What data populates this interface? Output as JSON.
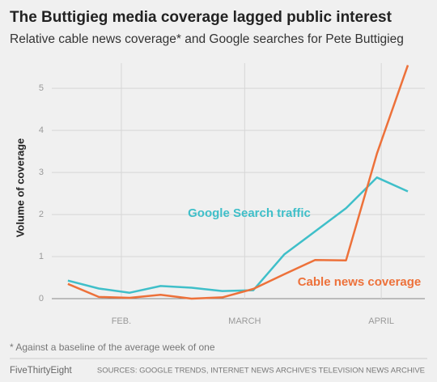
{
  "chart_data": {
    "type": "line",
    "title": "The Buttigieg media coverage lagged public interest",
    "subtitle": "Relative cable news coverage* and Google searches for Pete Buttigieg",
    "y_label": "Volume of coverage",
    "x": [
      0,
      1,
      2,
      3,
      4,
      5,
      6,
      7,
      8,
      9,
      10,
      11
    ],
    "xlim": [
      -0.52,
      11.55
    ],
    "xticks": [
      {
        "value": 1.73,
        "label": "FEB."
      },
      {
        "value": 5.72,
        "label": "MARCH"
      },
      {
        "value": 10.14,
        "label": "APRIL"
      }
    ],
    "ylim": [
      0,
      5.6
    ],
    "yticks": [
      0,
      1,
      2,
      3,
      4,
      5
    ],
    "grid": true,
    "series": [
      {
        "name": "Google Search traffic",
        "color": "#3fbfc9",
        "values": [
          0.43,
          0.24,
          0.14,
          0.3,
          0.26,
          0.18,
          0.2,
          1.05,
          1.6,
          2.15,
          2.88,
          2.55
        ]
      },
      {
        "name": "Cable news coverage",
        "color": "#ed713a",
        "values": [
          0.35,
          0.04,
          0.02,
          0.09,
          0.0,
          0.03,
          0.23,
          0.58,
          0.92,
          0.91,
          3.45,
          5.55
        ]
      }
    ],
    "footnote": "* Against a baseline of the average week of one",
    "credit": "FiveThirtyEight",
    "sources": "SOURCES: GOOGLE TRENDS, INTERNET NEWS ARCHIVE'S TELEVISION NEWS ARCHIVE"
  }
}
